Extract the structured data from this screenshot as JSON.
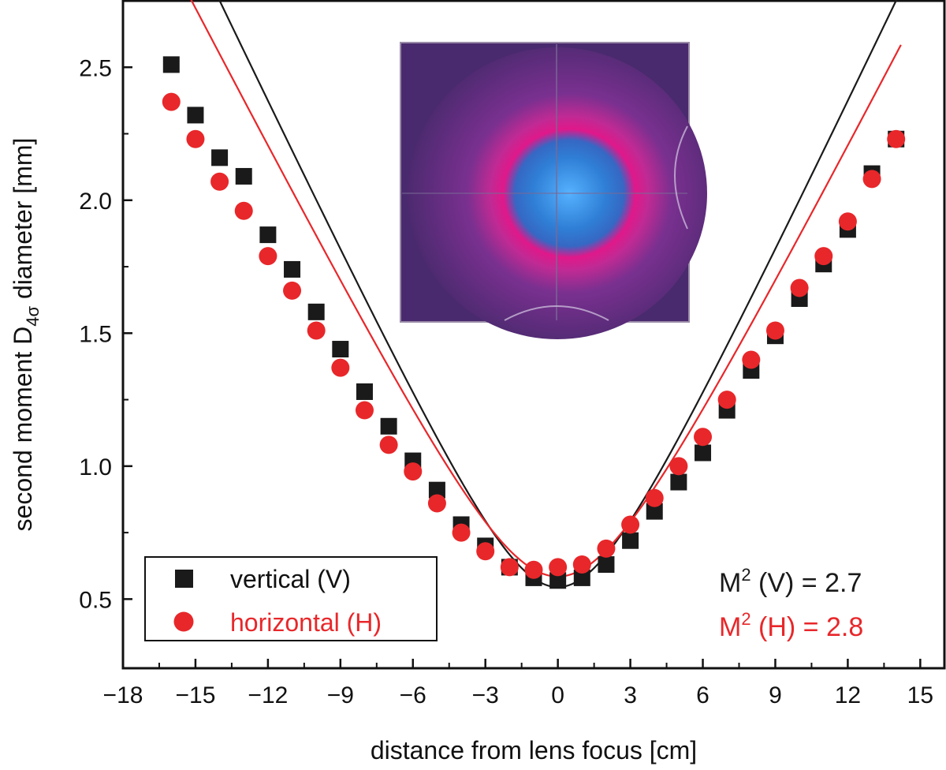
{
  "chart_data": {
    "type": "scatter",
    "xlabel": "distance from lens focus [cm]",
    "ylabel": {
      "prefix": "second moment D",
      "subscript": "4σ",
      "suffix": " diameter [mm]"
    },
    "xlim": [
      -18,
      16
    ],
    "ylim": [
      0.24,
      2.75
    ],
    "xticks": [
      -18,
      -15,
      -12,
      -9,
      -6,
      -3,
      0,
      3,
      6,
      9,
      12,
      15
    ],
    "xtick_labels": [
      "−18",
      "−15",
      "−12",
      "−9",
      "−6",
      "−3",
      "0",
      "3",
      "6",
      "9",
      "12",
      "15"
    ],
    "yticks": [
      0.5,
      1.0,
      1.5,
      2.0,
      2.5
    ],
    "ytick_labels": [
      "0.5",
      "1.0",
      "1.5",
      "2.0",
      "2.5"
    ],
    "grid": false,
    "legend": {
      "position": "bottom-left"
    },
    "series": [
      {
        "name": "vertical (V)",
        "marker": "square",
        "color": "#1a1a1a",
        "x": [
          -16,
          -15,
          -14,
          -13,
          -12,
          -11,
          -10,
          -9,
          -8,
          -7,
          -6,
          -5,
          -4,
          -3,
          -2,
          -1,
          0,
          1,
          2,
          3,
          4,
          5,
          6,
          7,
          8,
          9,
          10,
          11,
          12,
          13,
          14
        ],
        "values": [
          2.51,
          2.32,
          2.16,
          2.09,
          1.87,
          1.74,
          1.58,
          1.44,
          1.28,
          1.15,
          1.02,
          0.91,
          0.78,
          0.7,
          0.62,
          0.58,
          0.57,
          0.58,
          0.63,
          0.72,
          0.83,
          0.94,
          1.05,
          1.21,
          1.36,
          1.49,
          1.63,
          1.76,
          1.89,
          2.1,
          2.23
        ],
        "fit": {
          "w0": 0.545,
          "z0": 0.0,
          "zr": 2.83
        }
      },
      {
        "name": "horizontal (H)",
        "marker": "circle",
        "color": "#e8272a",
        "x": [
          -16,
          -15,
          -14,
          -13,
          -12,
          -11,
          -10,
          -9,
          -8,
          -7,
          -6,
          -5,
          -4,
          -3,
          -2,
          -1,
          0,
          1,
          2,
          3,
          4,
          5,
          6,
          7,
          8,
          9,
          10,
          11,
          12,
          13,
          14
        ],
        "values": [
          2.37,
          2.23,
          2.07,
          1.96,
          1.79,
          1.66,
          1.51,
          1.37,
          1.21,
          1.08,
          0.98,
          0.86,
          0.75,
          0.68,
          0.62,
          0.61,
          0.62,
          0.63,
          0.69,
          0.78,
          0.88,
          1.0,
          1.11,
          1.25,
          1.4,
          1.51,
          1.67,
          1.79,
          1.92,
          2.08,
          2.23
        ],
        "fit": {
          "w0": 0.585,
          "z0": 0.0,
          "zr": 3.3
        }
      }
    ],
    "annotations": {
      "m2_v": {
        "base": "M",
        "sup": "2",
        "rest": " (V) = 2.7",
        "color": "#1a1a1a"
      },
      "m2_h": {
        "base": "M",
        "sup": "2",
        "rest": " (H) = 2.8",
        "color": "#e8272a"
      }
    },
    "inset": {
      "description_kind": "beam profile image",
      "colors": {
        "background": "#4a2a6e",
        "ring": "#e0188a",
        "core": "#2a7fd0"
      }
    }
  }
}
